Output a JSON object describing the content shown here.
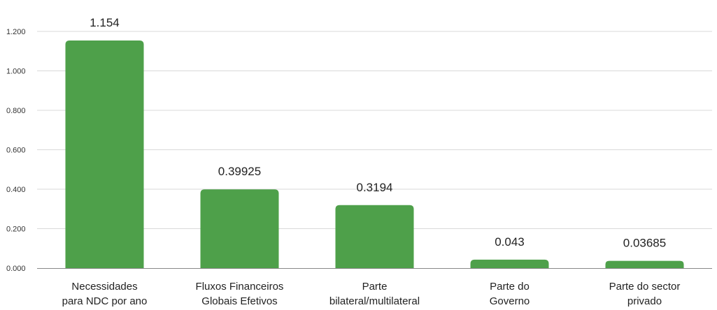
{
  "chart_data": {
    "type": "bar",
    "categories": [
      [
        "Necessidades",
        "para NDC por ano"
      ],
      [
        "Fluxos Financeiros",
        "Globais Efetivos"
      ],
      [
        "Parte",
        "bilateral/multilateral"
      ],
      [
        "Parte do",
        "Governo"
      ],
      [
        "Parte do sector",
        "privado"
      ]
    ],
    "values": [
      1.154,
      0.39925,
      0.3194,
      0.043,
      0.03685
    ],
    "value_labels": [
      "1.154",
      "0.39925",
      "0.3194",
      "0.043",
      "0.03685"
    ],
    "ylim": [
      0,
      1.2
    ],
    "y_ticks": [
      0,
      0.2,
      0.4,
      0.6,
      0.8,
      1.0,
      1.2
    ],
    "y_tick_labels": [
      "0.000",
      "0.200",
      "0.400",
      "0.600",
      "0.800",
      "1.000",
      "1.200"
    ],
    "title": "",
    "xlabel": "",
    "ylabel": "",
    "grid": true,
    "legend": "none",
    "bar_color": "#4ea04a"
  }
}
